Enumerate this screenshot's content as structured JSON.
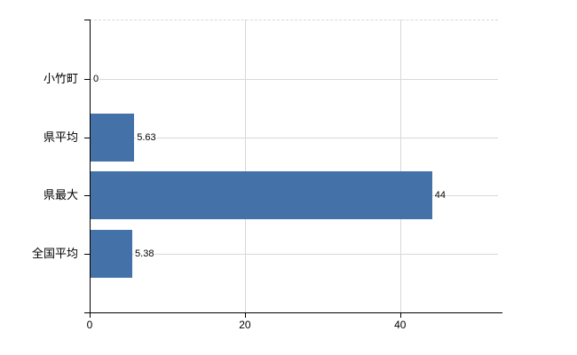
{
  "chart_data": {
    "type": "bar",
    "orientation": "horizontal",
    "title": "",
    "xlabel": "",
    "ylabel": "",
    "categories": [
      "小竹町",
      "県平均",
      "県最大",
      "全国平均"
    ],
    "values": [
      0,
      5.63,
      44,
      5.38
    ],
    "data_labels": [
      "0",
      "5.63",
      "44",
      "5.38"
    ],
    "x_ticks": [
      0,
      20,
      40
    ],
    "xlim": [
      0,
      52.6
    ],
    "grid": true,
    "legend": false,
    "colors": {
      "bar": "#4472a8",
      "gridline": "#d8d8d8",
      "axis": "#000000",
      "text": "#000000",
      "background": "#ffffff"
    }
  }
}
